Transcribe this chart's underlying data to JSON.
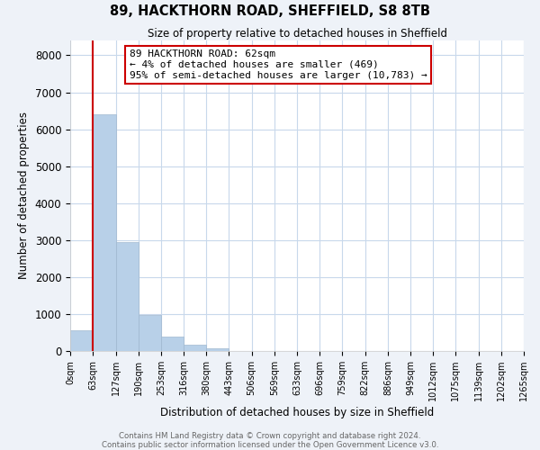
{
  "title": "89, HACKTHORN ROAD, SHEFFIELD, S8 8TB",
  "subtitle": "Size of property relative to detached houses in Sheffield",
  "xlabel": "Distribution of detached houses by size in Sheffield",
  "ylabel": "Number of detached properties",
  "bar_edges": [
    0,
    63,
    127,
    190,
    253,
    316,
    380,
    443,
    506,
    569,
    633,
    696,
    759,
    822,
    886,
    949,
    1012,
    1075,
    1139,
    1202,
    1265
  ],
  "bar_heights": [
    560,
    6400,
    2950,
    980,
    380,
    160,
    70,
    0,
    0,
    0,
    0,
    0,
    0,
    0,
    0,
    0,
    0,
    0,
    0,
    0
  ],
  "bar_color": "#b8d0e8",
  "bar_edgecolor": "#a0b8d0",
  "annotation_box_text": "89 HACKTHORN ROAD: 62sqm\n← 4% of detached houses are smaller (469)\n95% of semi-detached houses are larger (10,783) →",
  "vline_x": 62,
  "vline_color": "#cc0000",
  "box_edgecolor": "#cc0000",
  "ylim": [
    0,
    8400
  ],
  "yticks": [
    0,
    1000,
    2000,
    3000,
    4000,
    5000,
    6000,
    7000,
    8000
  ],
  "tick_labels": [
    "0sqm",
    "63sqm",
    "127sqm",
    "190sqm",
    "253sqm",
    "316sqm",
    "380sqm",
    "443sqm",
    "506sqm",
    "569sqm",
    "633sqm",
    "696sqm",
    "759sqm",
    "822sqm",
    "886sqm",
    "949sqm",
    "1012sqm",
    "1075sqm",
    "1139sqm",
    "1202sqm",
    "1265sqm"
  ],
  "footer_line1": "Contains HM Land Registry data © Crown copyright and database right 2024.",
  "footer_line2": "Contains public sector information licensed under the Open Government Licence v3.0.",
  "bg_color": "#eef2f8",
  "plot_bg_color": "#ffffff",
  "grid_color": "#c8d8eb"
}
